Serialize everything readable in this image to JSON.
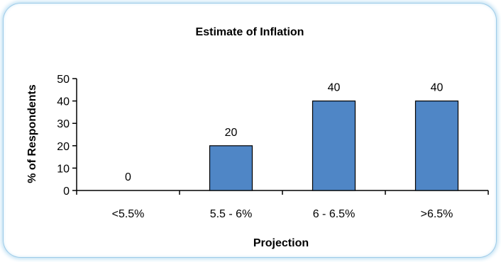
{
  "chart_data": {
    "type": "bar",
    "title": "Estimate of Inflation",
    "xlabel": "Projection",
    "ylabel": "% of Respondents",
    "categories": [
      "<5.5%",
      "5.5 - 6%",
      "6 - 6.5%",
      ">6.5%"
    ],
    "values": [
      0,
      20,
      40,
      40
    ],
    "data_labels": [
      "0",
      "20",
      "40",
      "40"
    ],
    "ylim": [
      0,
      50
    ],
    "yticks": [
      0,
      10,
      20,
      30,
      40,
      50
    ],
    "grid": false,
    "bar_color": "#4f86c6",
    "bar_border_color": "#000000"
  }
}
